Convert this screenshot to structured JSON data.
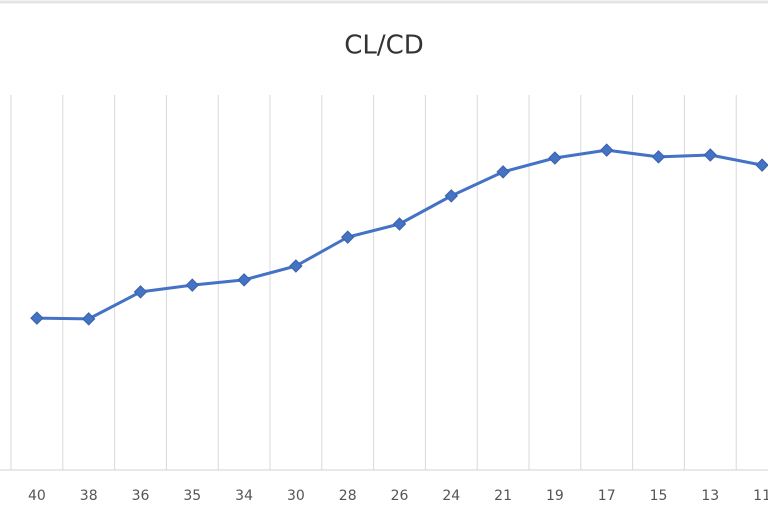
{
  "chart_data": {
    "type": "line",
    "title": "CL/CD",
    "categories": [
      "40",
      "38",
      "36",
      "35",
      "34",
      "30",
      "28",
      "26",
      "24",
      "21",
      "19",
      "17",
      "15",
      "13",
      "11"
    ],
    "values": [
      40.5,
      40.3,
      47.5,
      49.3,
      50.7,
      54.4,
      62.1,
      65.6,
      73.1,
      79.5,
      83.2,
      85.3,
      83.5,
      84.0,
      81.3
    ],
    "color": "#4472c4",
    "ylim": [
      0,
      100
    ],
    "grid": true
  }
}
